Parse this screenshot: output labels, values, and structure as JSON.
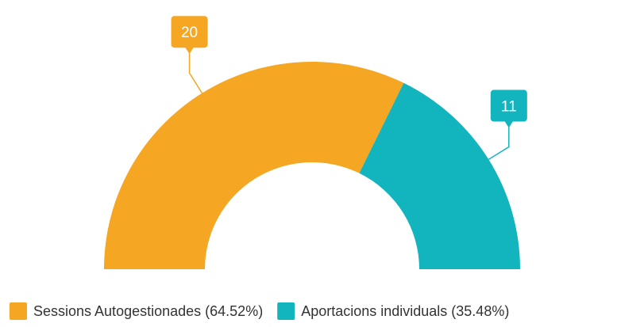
{
  "chart_data": {
    "type": "semi-donut",
    "categories": [
      "Sessions Autogestionades (64.52%)",
      "Aportacions individuals (35.48%)"
    ],
    "values": [
      20,
      11
    ],
    "colors": [
      "#f5a623",
      "#12b4be"
    ]
  }
}
